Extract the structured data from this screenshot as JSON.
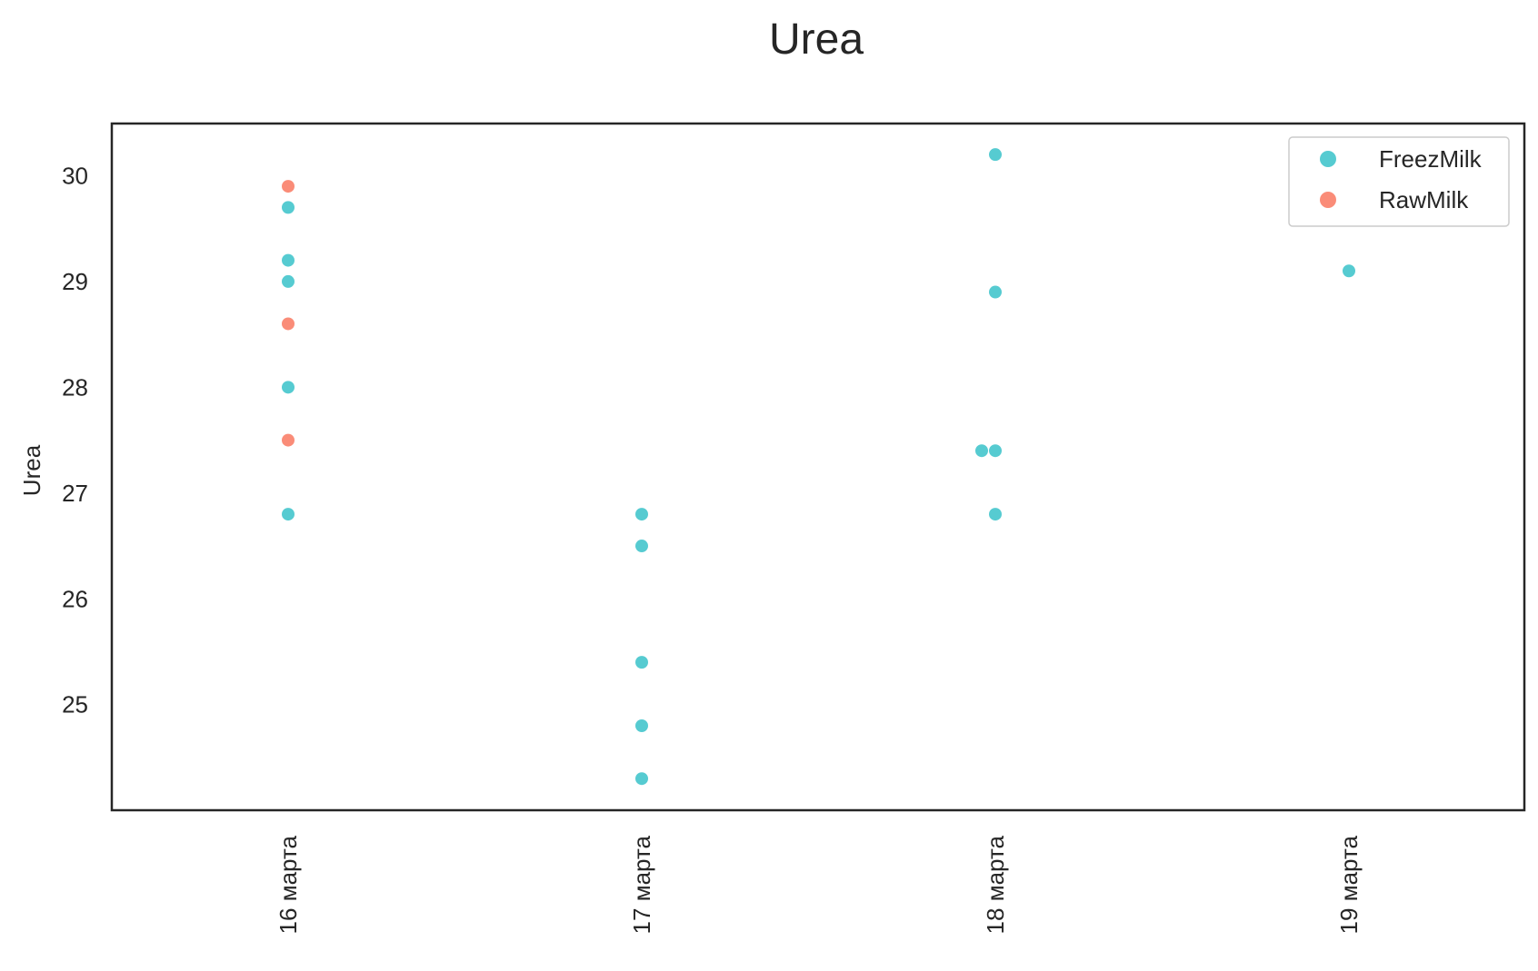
{
  "chart_data": {
    "type": "scatter",
    "title": "Urea",
    "xlabel": "",
    "ylabel": "Urea",
    "categories": [
      "16 марта",
      "17 марта",
      "18 марта",
      "19 марта"
    ],
    "yticks": [
      25,
      26,
      27,
      28,
      29,
      30
    ],
    "ylim": [
      24.0,
      30.5
    ],
    "grid": false,
    "legend_position": "top-right",
    "series": [
      {
        "name": "FreezMilk",
        "color": "#56cbd1",
        "points": [
          {
            "x": "16 марта",
            "y": 29.7
          },
          {
            "x": "16 марта",
            "y": 29.2
          },
          {
            "x": "16 марта",
            "y": 29.0
          },
          {
            "x": "16 марта",
            "y": 28.0
          },
          {
            "x": "16 марта",
            "y": 26.8
          },
          {
            "x": "17 марта",
            "y": 26.8
          },
          {
            "x": "17 марта",
            "y": 26.5
          },
          {
            "x": "17 марта",
            "y": 25.4
          },
          {
            "x": "17 марта",
            "y": 24.8
          },
          {
            "x": "17 марта",
            "y": 24.3
          },
          {
            "x": "18 марта",
            "y": 30.2
          },
          {
            "x": "18 марта",
            "y": 28.9
          },
          {
            "x": "18 марта",
            "y": 27.4
          },
          {
            "x": "18 марта",
            "y": 27.4
          },
          {
            "x": "18 марта",
            "y": 26.8
          },
          {
            "x": "19 марта",
            "y": 29.1
          }
        ]
      },
      {
        "name": "RawMilk",
        "color": "#fa8c78",
        "points": [
          {
            "x": "16 марта",
            "y": 29.9
          },
          {
            "x": "16 марта",
            "y": 28.6
          },
          {
            "x": "16 марта",
            "y": 27.5
          }
        ]
      }
    ]
  }
}
